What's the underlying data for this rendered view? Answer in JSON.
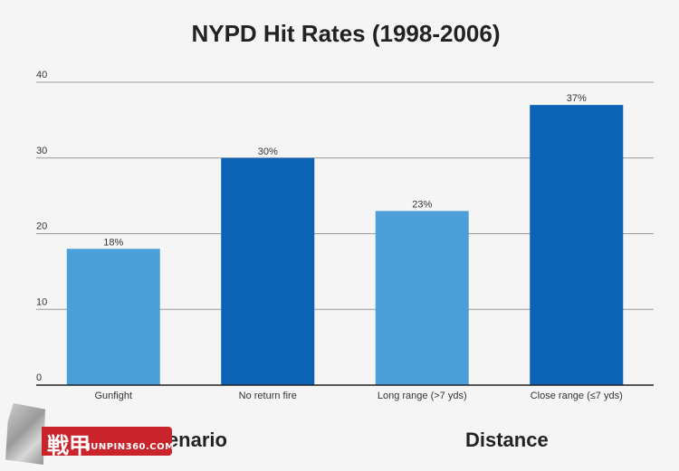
{
  "chart_data": {
    "type": "bar",
    "title": "NYPD Hit Rates (1998-2006)",
    "categories": [
      "Gunfight",
      "No return fire",
      "Long range (>7 yds)",
      "Close range (≤7 yds)"
    ],
    "values": [
      18,
      30,
      23,
      37
    ],
    "data_labels": [
      "18%",
      "30%",
      "23%",
      "37%"
    ],
    "bar_colors": [
      "#4d9fdc",
      "#0a63b4",
      "#4d9fdc",
      "#0a63b4"
    ],
    "ylim": [
      0,
      40
    ],
    "yticks": [
      0,
      10,
      20,
      30,
      40
    ],
    "grid": true,
    "groups": [
      {
        "label": "Scenario",
        "categories": [
          "Gunfight",
          "No return fire"
        ]
      },
      {
        "label": "Distance",
        "categories": [
          "Long range (>7 yds)",
          "Close range (≤7 yds)"
        ]
      }
    ]
  },
  "watermark": {
    "glyph": "戦甲",
    "site": "JUNPIN360.COM"
  }
}
